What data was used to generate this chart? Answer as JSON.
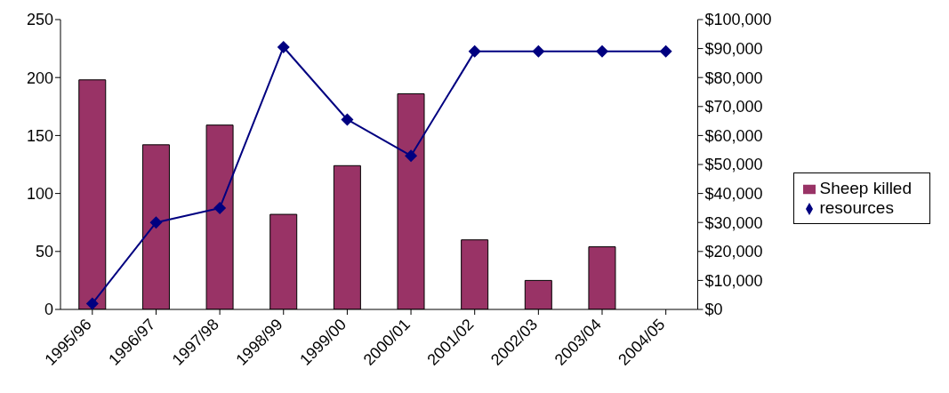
{
  "chart_data": {
    "type": "bar",
    "categories": [
      "1995/96",
      "1996/97",
      "1997/98",
      "1998/99",
      "1999/00",
      "2000/01",
      "2001/02",
      "2002/03",
      "2003/04",
      "2004/05"
    ],
    "series": [
      {
        "name": "Sheep killed",
        "color": "#993366",
        "values": [
          198,
          142,
          159,
          82,
          124,
          186,
          60,
          25,
          54,
          null
        ]
      },
      {
        "name": "resources",
        "type": "line",
        "axis": "y2",
        "color": "#000080",
        "marker": "diamond",
        "values": [
          2000,
          30000,
          35000,
          90500,
          65500,
          53000,
          89000,
          89000,
          89000,
          89000
        ]
      }
    ],
    "ylim": [
      0,
      250
    ],
    "yticks": [
      0,
      50,
      100,
      150,
      200,
      250
    ],
    "y2lim": [
      0,
      100000
    ],
    "y2ticks": [
      {
        "value": 0,
        "label": "$0"
      },
      {
        "value": 10000,
        "label": "$10,000"
      },
      {
        "value": 20000,
        "label": "$20,000"
      },
      {
        "value": 30000,
        "label": "$30,000"
      },
      {
        "value": 40000,
        "label": "$40,000"
      },
      {
        "value": 50000,
        "label": "$50,000"
      },
      {
        "value": 60000,
        "label": "$60,000"
      },
      {
        "value": 70000,
        "label": "$70,000"
      },
      {
        "value": 80000,
        "label": "$80,000"
      },
      {
        "value": 90000,
        "label": "$90,000"
      },
      {
        "value": 100000,
        "label": "$100,000"
      }
    ],
    "grid": false,
    "legend": "right"
  }
}
